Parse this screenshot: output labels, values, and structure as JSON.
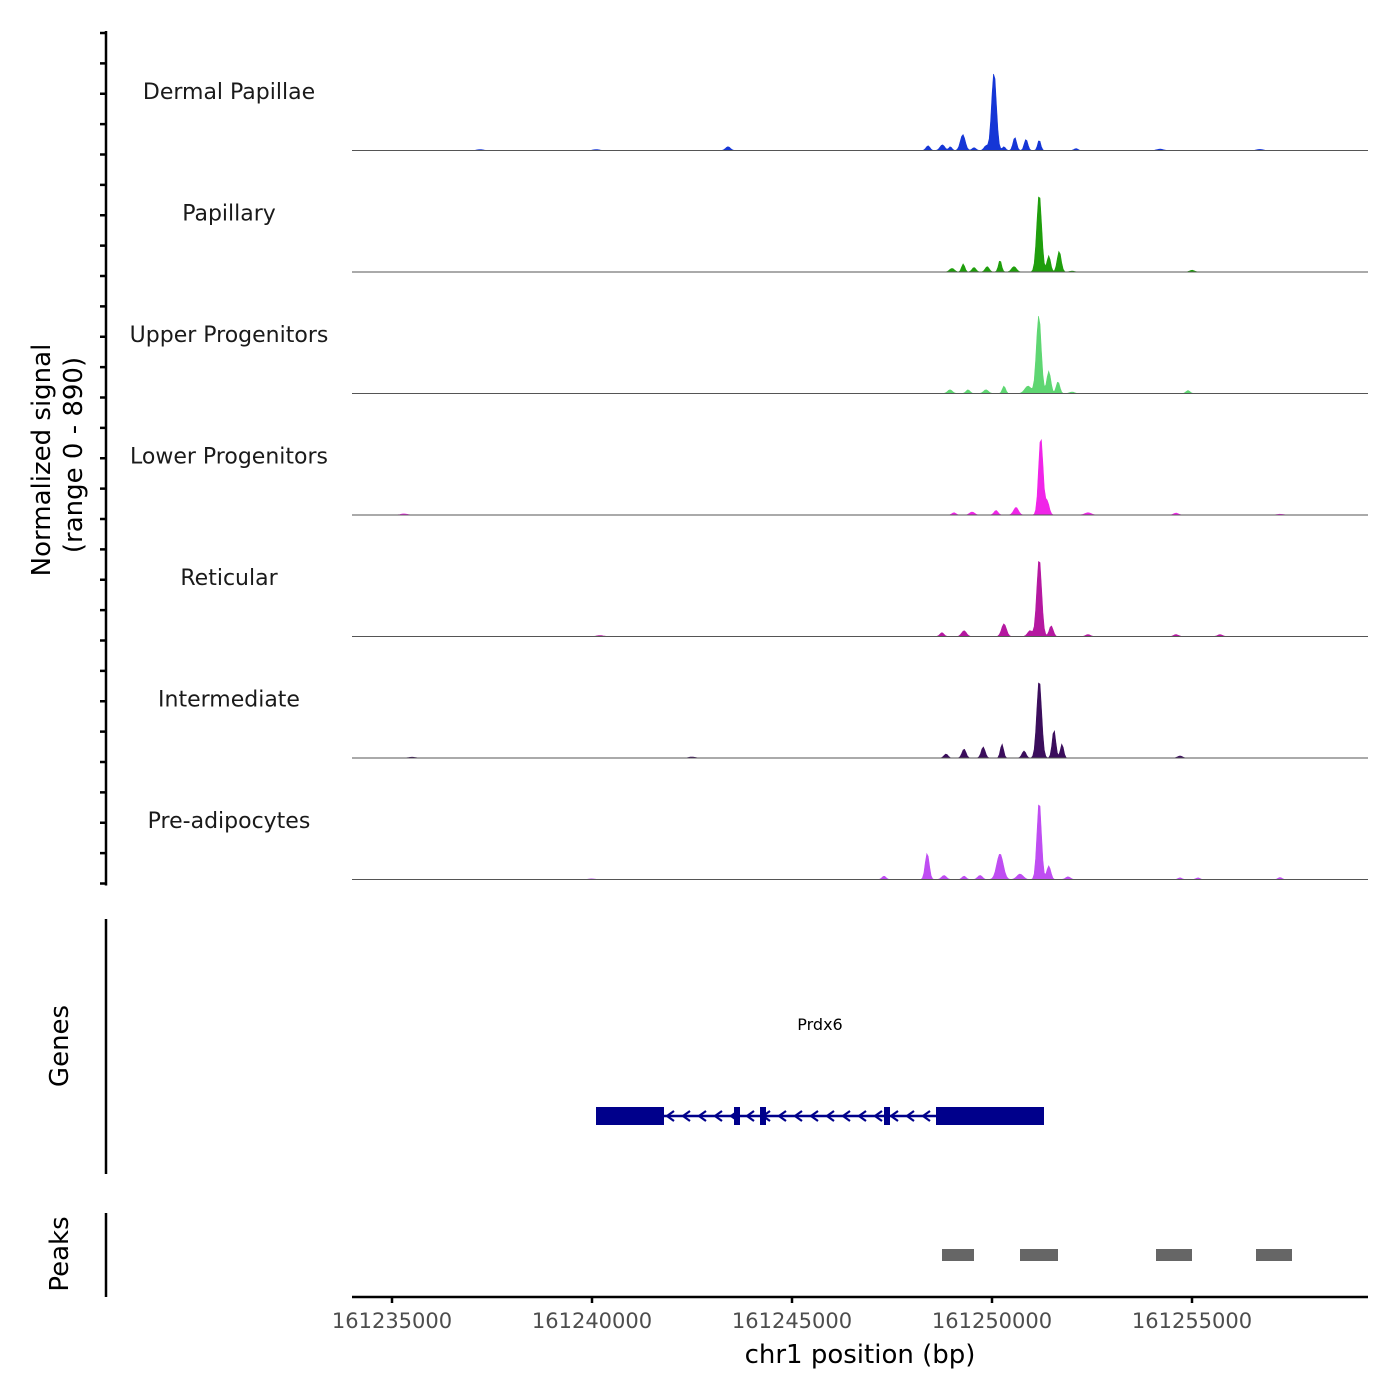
{
  "chart_data": {
    "type": "area",
    "title": "",
    "ylabel_line1": "Normalized signal",
    "ylabel_line2": "(range 0 - 890)",
    "ylim": [
      0,
      890
    ],
    "xlabel": "chr1 position (bp)",
    "xlim": [
      161234000,
      161259400
    ],
    "xticks": [
      161235000,
      161240000,
      161245000,
      161250000,
      161255000
    ],
    "xtick_labels": [
      "161235000",
      "161240000",
      "161245000",
      "161250000",
      "161255000"
    ],
    "tracks": [
      {
        "name": "Dermal Papillae",
        "color": "#1536d6",
        "peaks": [
          [
            161250050,
            830,
            60
          ],
          [
            161249270,
            170,
            60
          ],
          [
            161250570,
            140,
            45
          ],
          [
            161250850,
            120,
            45
          ],
          [
            161251180,
            110,
            40
          ],
          [
            161248400,
            50,
            50
          ],
          [
            161249850,
            50,
            50
          ],
          [
            161248760,
            60,
            60
          ],
          [
            161248960,
            40,
            40
          ],
          [
            161249550,
            30,
            50
          ],
          [
            161250300,
            40,
            40
          ],
          [
            161243400,
            40,
            60
          ],
          [
            161252100,
            20,
            50
          ],
          [
            161237200,
            10,
            80
          ],
          [
            161240100,
            10,
            80
          ],
          [
            161254200,
            15,
            80
          ],
          [
            161256700,
            12,
            80
          ]
        ]
      },
      {
        "name": "Papillary",
        "color": "#1f9e0c",
        "peaks": [
          [
            161251180,
            860,
            60
          ],
          [
            161251680,
            230,
            50
          ],
          [
            161251420,
            180,
            45
          ],
          [
            161250200,
            130,
            40
          ],
          [
            161249880,
            60,
            50
          ],
          [
            161249280,
            90,
            40
          ],
          [
            161249550,
            50,
            50
          ],
          [
            161249000,
            40,
            60
          ],
          [
            161250550,
            60,
            60
          ],
          [
            161255000,
            20,
            60
          ],
          [
            161252000,
            10,
            60
          ]
        ]
      },
      {
        "name": "Upper Progenitors",
        "color": "#5ed672",
        "peaks": [
          [
            161251170,
            1050,
            60
          ],
          [
            161251420,
            300,
            50
          ],
          [
            161251650,
            160,
            45
          ],
          [
            161250300,
            100,
            40
          ],
          [
            161250900,
            100,
            80
          ],
          [
            161248950,
            50,
            60
          ],
          [
            161249400,
            50,
            50
          ],
          [
            161249850,
            50,
            60
          ],
          [
            161254900,
            40,
            50
          ],
          [
            161252000,
            20,
            60
          ]
        ]
      },
      {
        "name": "Lower Progenitors",
        "color": "#f025e8",
        "peaks": [
          [
            161251220,
            1020,
            55
          ],
          [
            161251380,
            180,
            50
          ],
          [
            161250600,
            100,
            60
          ],
          [
            161250100,
            60,
            50
          ],
          [
            161249500,
            40,
            60
          ],
          [
            161249050,
            30,
            50
          ],
          [
            161252400,
            30,
            80
          ],
          [
            161254600,
            25,
            60
          ],
          [
            161235300,
            15,
            80
          ],
          [
            161257200,
            10,
            80
          ]
        ]
      },
      {
        "name": "Reticular",
        "color": "#b518a0",
        "peaks": [
          [
            161251180,
            800,
            60
          ],
          [
            161251480,
            110,
            50
          ],
          [
            161250300,
            130,
            60
          ],
          [
            161249300,
            60,
            60
          ],
          [
            161248750,
            40,
            50
          ],
          [
            161250950,
            60,
            60
          ],
          [
            161252400,
            20,
            60
          ],
          [
            161254600,
            20,
            60
          ],
          [
            161255700,
            20,
            60
          ],
          [
            161240200,
            10,
            80
          ]
        ]
      },
      {
        "name": "Intermediate",
        "color": "#3b0e5c",
        "peaks": [
          [
            161251180,
            780,
            60
          ],
          [
            161251550,
            280,
            45
          ],
          [
            161251750,
            140,
            40
          ],
          [
            161250250,
            140,
            40
          ],
          [
            161249780,
            110,
            50
          ],
          [
            161249300,
            90,
            50
          ],
          [
            161248850,
            40,
            50
          ],
          [
            161250800,
            70,
            50
          ],
          [
            161254700,
            20,
            60
          ],
          [
            161242500,
            10,
            80
          ],
          [
            161235500,
            8,
            80
          ]
        ]
      },
      {
        "name": "Pre-adipocytes",
        "color": "#bf4df2",
        "peaks": [
          [
            161251180,
            1150,
            55
          ],
          [
            161251420,
            200,
            50
          ],
          [
            161250200,
            380,
            80
          ],
          [
            161248380,
            390,
            50
          ],
          [
            161249700,
            60,
            60
          ],
          [
            161249300,
            50,
            50
          ],
          [
            161247300,
            50,
            50
          ],
          [
            161248800,
            60,
            60
          ],
          [
            161250700,
            80,
            80
          ],
          [
            161251900,
            40,
            60
          ],
          [
            161254700,
            25,
            50
          ],
          [
            161255150,
            25,
            50
          ],
          [
            161257200,
            30,
            50
          ],
          [
            161240000,
            10,
            80
          ]
        ]
      }
    ],
    "genes_title": "Genes",
    "genes": [
      {
        "name": "Prdx6",
        "start": 161240100,
        "end": 161251300,
        "strand": "-",
        "exons": [
          [
            161240100,
            161241800
          ],
          [
            161243550,
            161243700
          ],
          [
            161244200,
            161244350
          ],
          [
            161247300,
            161247450
          ],
          [
            161248600,
            161251300
          ]
        ]
      }
    ],
    "peaks_title": "Peaks",
    "peak_regions": [
      [
        161248750,
        161249550
      ],
      [
        161250700,
        161251650
      ],
      [
        161254100,
        161255000
      ],
      [
        161256600,
        161257500
      ]
    ]
  },
  "colors": {
    "gene": "#00008b",
    "peak_region": "#666666",
    "axis": "#000000",
    "baseline": "#555555"
  }
}
